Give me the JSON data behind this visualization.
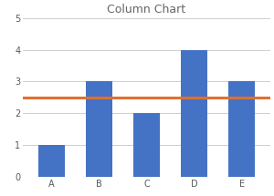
{
  "categories": [
    "A",
    "B",
    "C",
    "D",
    "E"
  ],
  "values": [
    1,
    3,
    2,
    4,
    3
  ],
  "bar_color": "#4472C4",
  "hline_value": 2.5,
  "hline_color": "#E07030",
  "title": "Column Chart",
  "title_fontsize": 9,
  "ylim": [
    0,
    5
  ],
  "yticks": [
    0,
    1,
    2,
    3,
    4,
    5
  ],
  "background_color": "#FFFFFF",
  "grid_color": "#C8C8C8",
  "tick_fontsize": 7,
  "bar_width": 0.55,
  "hline_linewidth": 2.2
}
